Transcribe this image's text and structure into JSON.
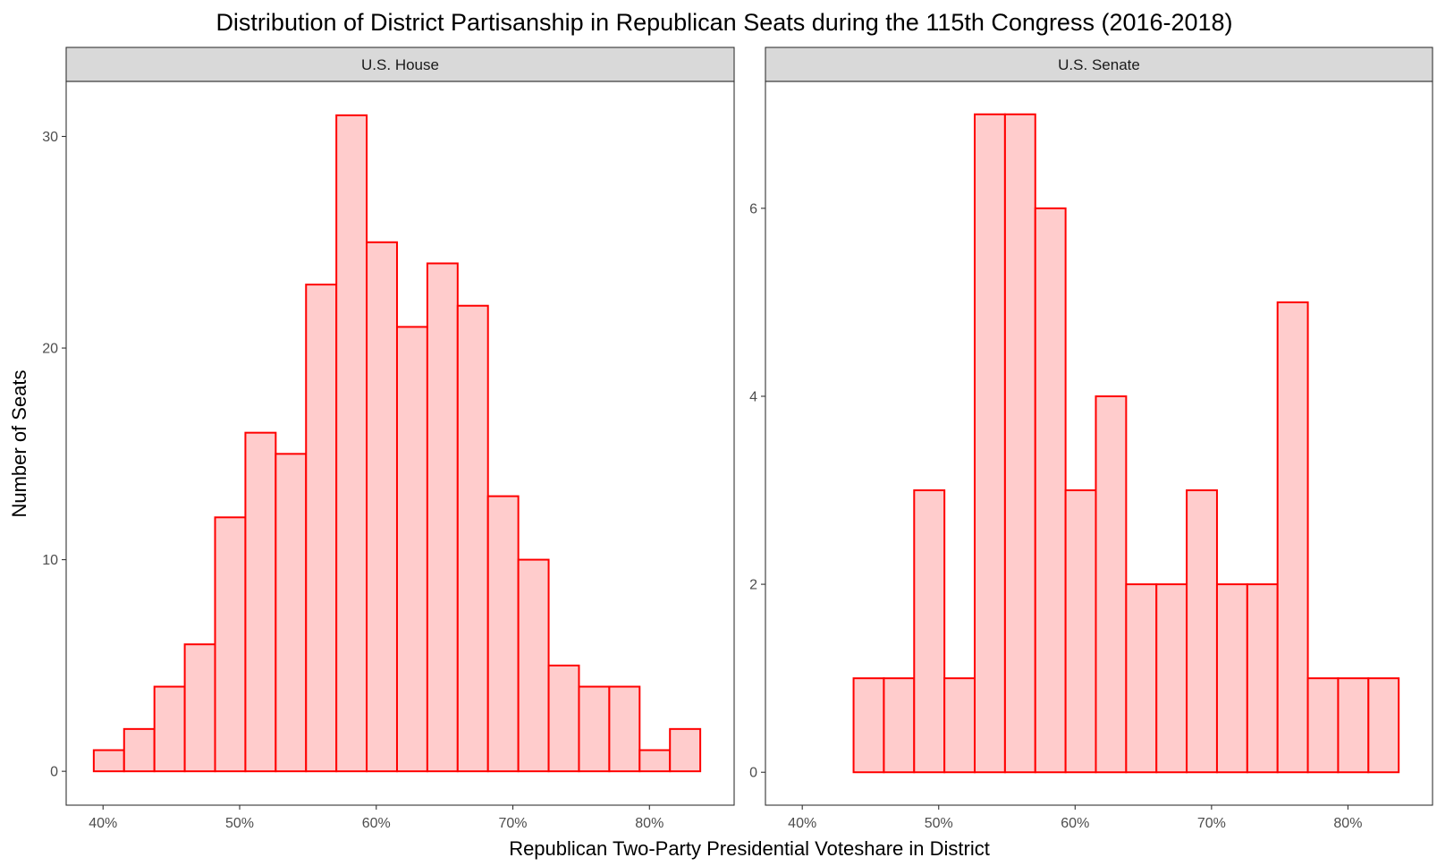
{
  "chart_data": {
    "type": "bar",
    "title": "Distribution of District Partisanship in Republican Seats during the 115th Congress (2016-2018)",
    "xlabel": "Republican Two-Party Presidential Voteshare in District",
    "ylabel": "Number of Seats",
    "bin_width": 0.0222,
    "fill_color": "#ffcccc",
    "stroke_color": "#ff0000",
    "grid": false,
    "xlim": [
      0.373,
      0.862
    ],
    "x_ticks": [
      {
        "value": 0.4,
        "label": "40%"
      },
      {
        "value": 0.5,
        "label": "50%"
      },
      {
        "value": 0.6,
        "label": "60%"
      },
      {
        "value": 0.7,
        "label": "70%"
      },
      {
        "value": 0.8,
        "label": "80%"
      }
    ],
    "bin_starts": [
      0.3932,
      0.4154,
      0.4376,
      0.4598,
      0.482,
      0.5042,
      0.5264,
      0.5486,
      0.5708,
      0.593,
      0.6152,
      0.6374,
      0.6596,
      0.6818,
      0.704,
      0.7262,
      0.7484,
      0.7706,
      0.7928,
      0.815
    ],
    "panels": [
      {
        "strip": "U.S. House",
        "values": [
          1,
          2,
          4,
          6,
          12,
          16,
          15,
          23,
          31,
          25,
          21,
          24,
          22,
          13,
          10,
          5,
          4,
          4,
          1,
          2
        ],
        "ylim": [
          -1.6,
          32.6
        ],
        "y_ticks": [
          0,
          10,
          20,
          30
        ]
      },
      {
        "strip": "U.S. Senate",
        "values": [
          0,
          0,
          1,
          1,
          3,
          1,
          7,
          7,
          6,
          3,
          4,
          2,
          2,
          3,
          2,
          2,
          5,
          1,
          1,
          1
        ],
        "ylim": [
          -0.35,
          7.35
        ],
        "y_ticks": [
          0,
          2,
          4,
          6
        ]
      }
    ]
  }
}
